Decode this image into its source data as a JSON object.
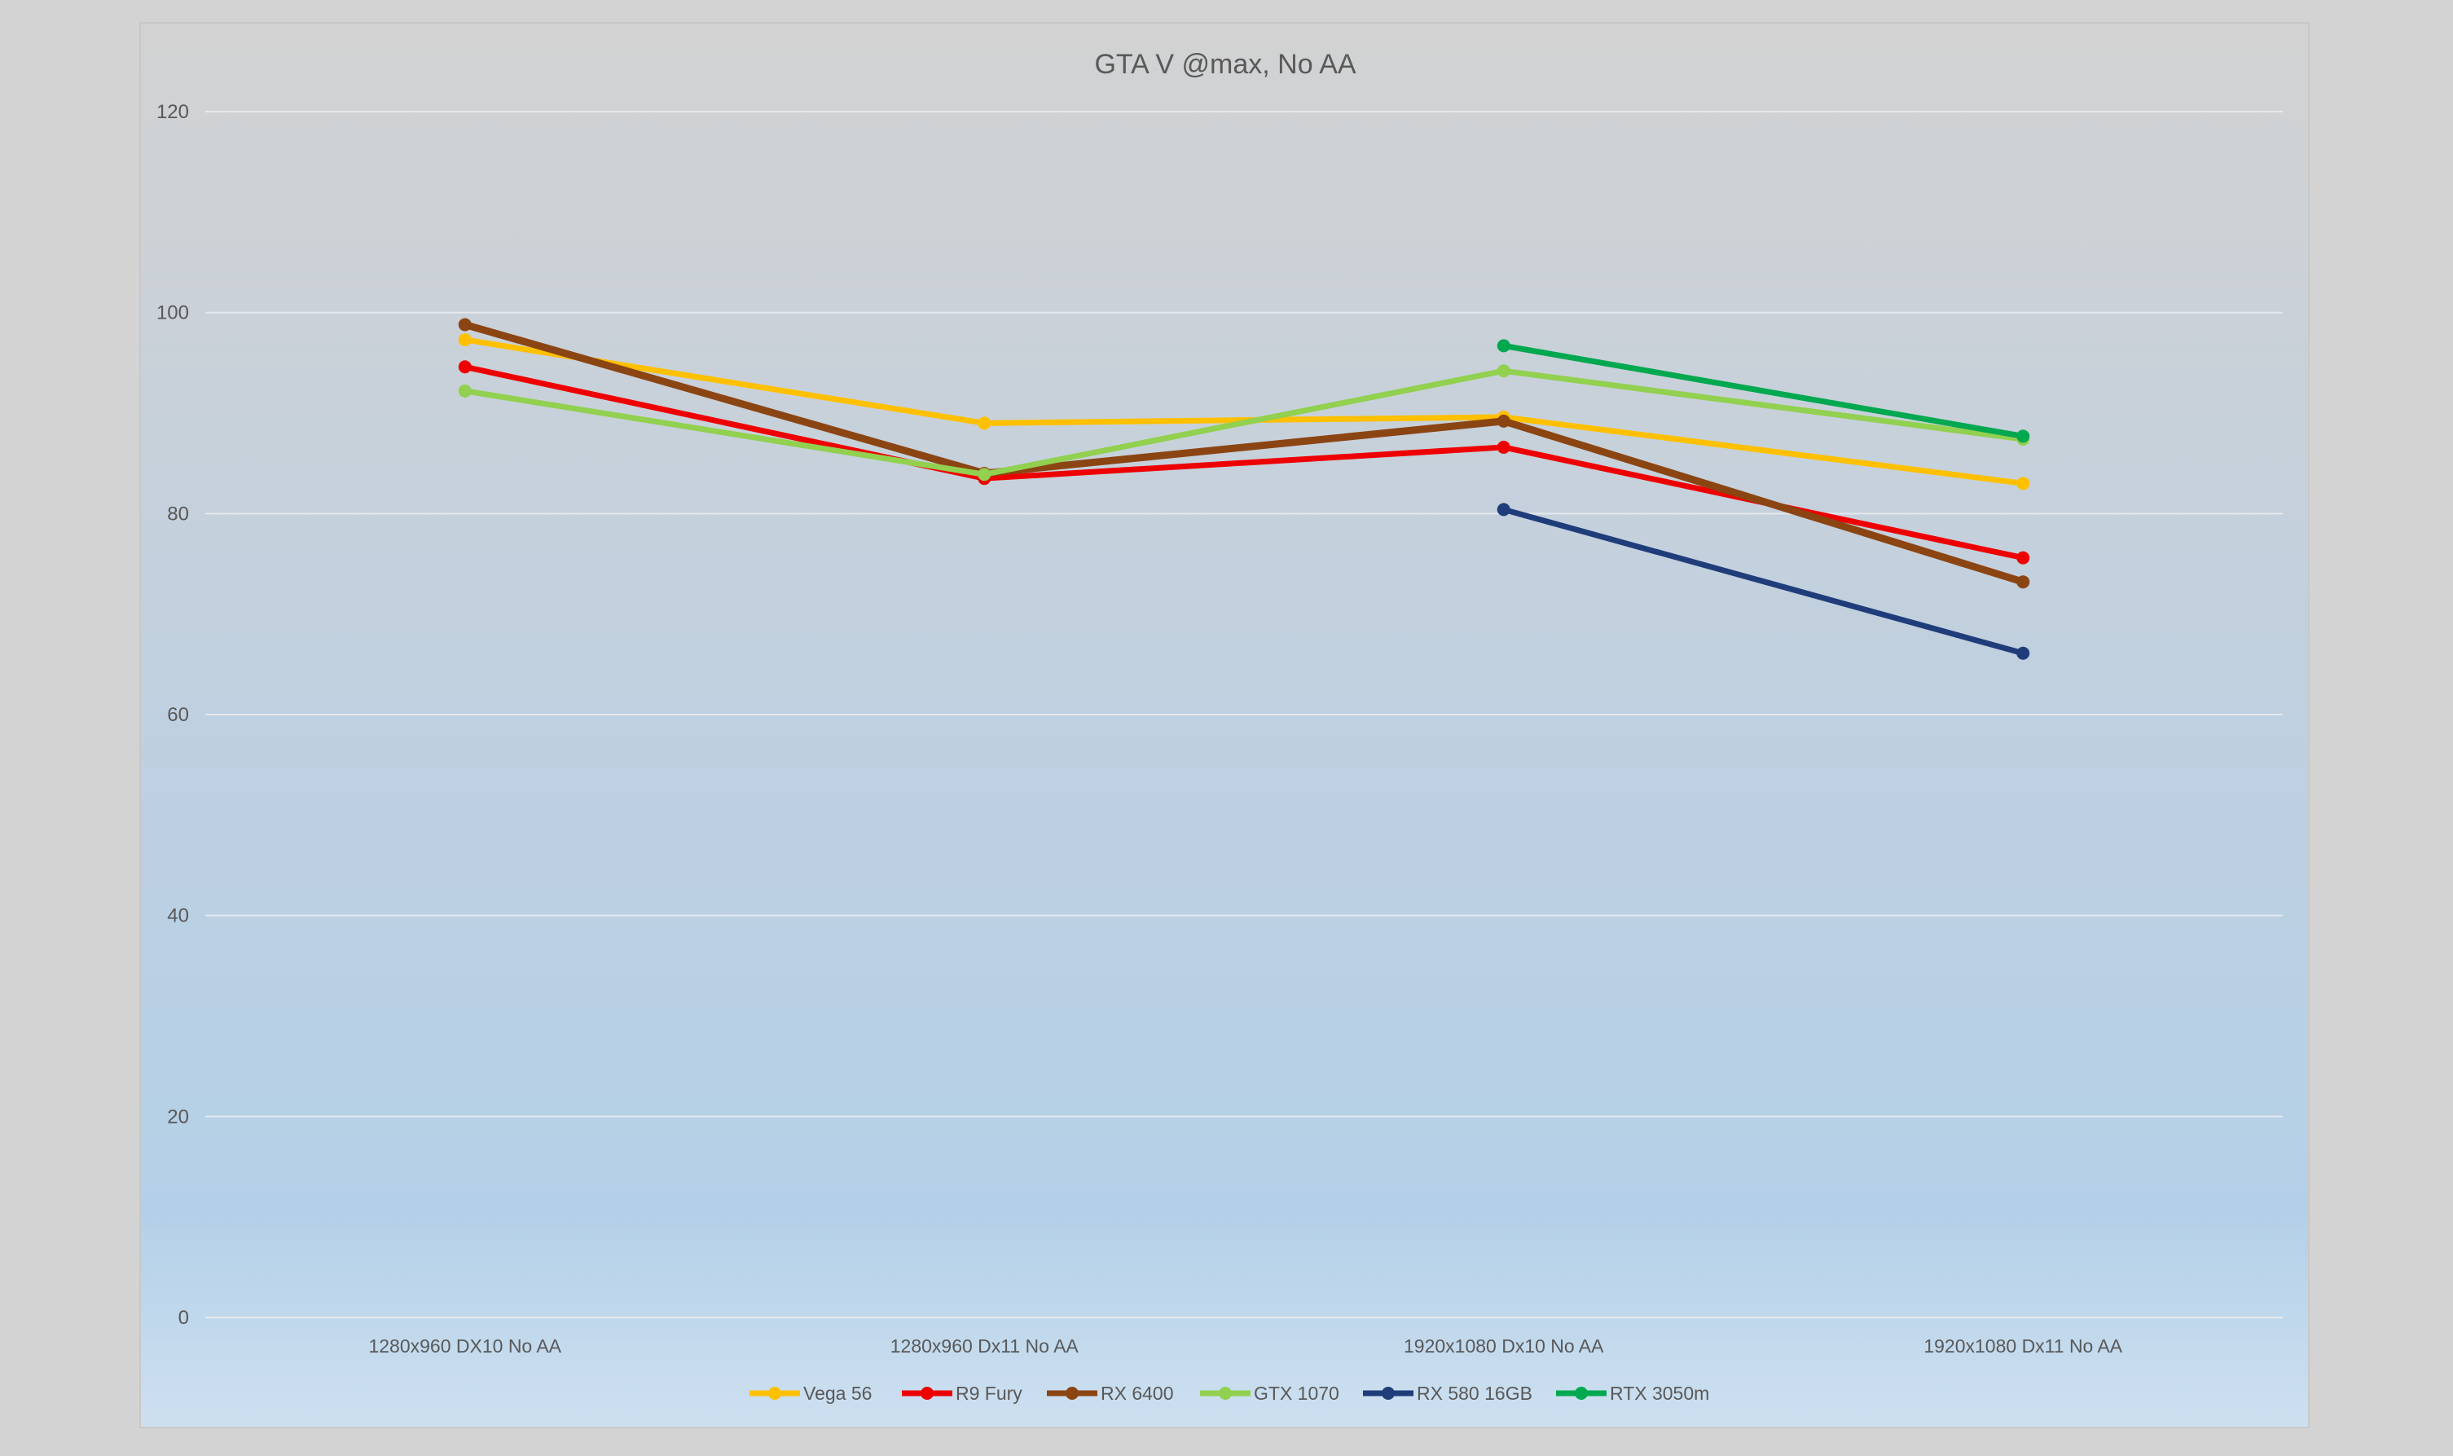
{
  "chart_data": {
    "type": "line",
    "title": "GTA V @max, No AA",
    "xlabel": "",
    "ylabel": "",
    "ylim": [
      0,
      120
    ],
    "yticks": [
      0,
      20,
      40,
      60,
      80,
      100,
      120
    ],
    "grid": true,
    "legend_position": "bottom-center",
    "categories": [
      "1280x960 DX10 No AA",
      "1280x960 Dx11 No AA",
      "1920x1080 Dx10 No AA",
      "1920x1080 Dx11 No AA"
    ],
    "series": [
      {
        "name": "Vega 56",
        "color": "#FFC000",
        "values": [
          97.3,
          89.0,
          89.6,
          83.0
        ]
      },
      {
        "name": "R9 Fury",
        "color": "#EE0000",
        "values": [
          94.6,
          83.5,
          86.6,
          75.6
        ]
      },
      {
        "name": "RX 6400",
        "color": "#8B4513",
        "values": [
          98.8,
          84.0,
          89.2,
          73.2
        ]
      },
      {
        "name": "GTX 1070",
        "color": "#92D050",
        "values": [
          92.2,
          83.9,
          94.2,
          87.4
        ]
      },
      {
        "name": "RX 580 16GB",
        "color": "#1F3D7A",
        "values": [
          null,
          null,
          80.4,
          66.1
        ]
      },
      {
        "name": "RTX 3050m",
        "color": "#00A84F",
        "values": [
          null,
          null,
          96.7,
          87.7
        ]
      }
    ]
  }
}
